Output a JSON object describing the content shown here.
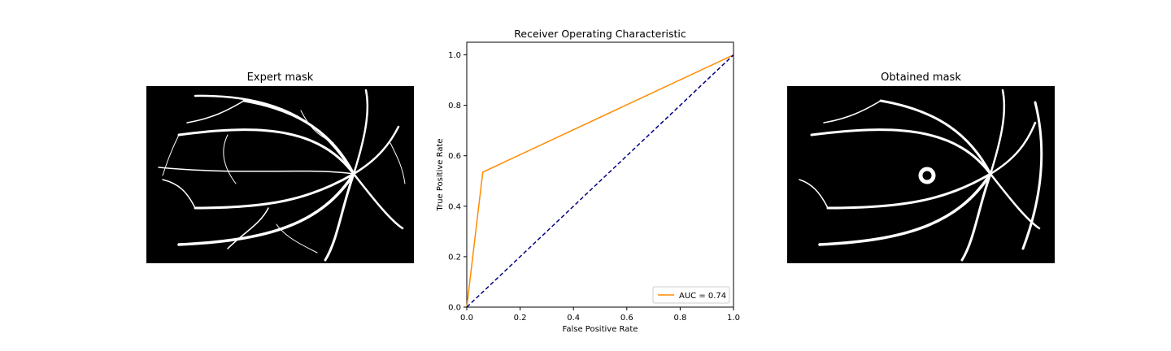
{
  "left_panel": {
    "title": "Expert mask"
  },
  "right_panel": {
    "title": "Obtained mask"
  },
  "chart_data": {
    "type": "line",
    "title": "Receiver Operating Characteristic",
    "xlabel": "False Positive Rate",
    "ylabel": "True Positive Rate",
    "xlim": [
      0.0,
      1.0
    ],
    "ylim": [
      0.0,
      1.05
    ],
    "xticks": [
      "0.0",
      "0.2",
      "0.4",
      "0.6",
      "0.8",
      "1.0"
    ],
    "yticks": [
      "0.0",
      "0.2",
      "0.4",
      "0.6",
      "0.8",
      "1.0"
    ],
    "legend_position": "lower-right",
    "series": [
      {
        "name": "AUC = 0.74",
        "color": "#ff8c00",
        "style": "solid",
        "x": [
          0.0,
          0.06,
          1.0
        ],
        "y": [
          0.0,
          0.535,
          1.0
        ]
      },
      {
        "name": "",
        "color": "#000080",
        "style": "dashed",
        "x": [
          0.0,
          1.0
        ],
        "y": [
          0.0,
          1.0
        ]
      }
    ]
  }
}
